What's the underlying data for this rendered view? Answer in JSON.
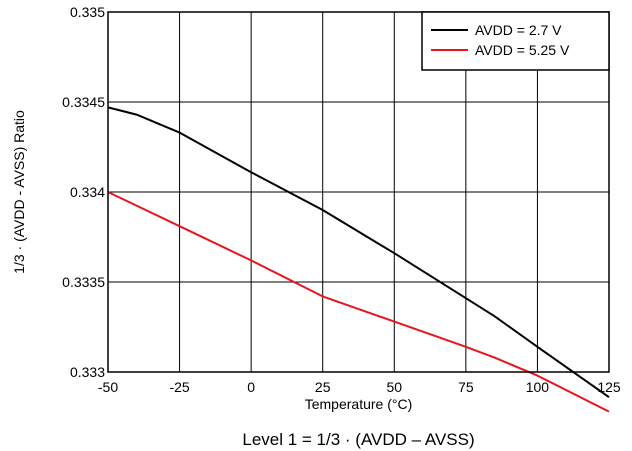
{
  "chart_data": {
    "type": "line",
    "title": "",
    "caption": "Level 1 = 1/3 · (AVDD – AVSS)",
    "xlabel": "Temperature (°C)",
    "ylabel": "1/3 · (AVDD - AVSS) Ratio",
    "xlim": [
      -50,
      125
    ],
    "ylim": [
      0.333,
      0.335
    ],
    "xticks": [
      -50,
      -25,
      0,
      25,
      50,
      75,
      100,
      125
    ],
    "xtick_labels": [
      "-50",
      "-25",
      "0",
      "25",
      "50",
      "75",
      "100",
      "125"
    ],
    "yticks": [
      0.333,
      0.3335,
      0.334,
      0.3345,
      0.335
    ],
    "ytick_labels": [
      "0.333",
      "0.3335",
      "0.334",
      "0.3345",
      "0.335"
    ],
    "grid": true,
    "legend_position": "top-right",
    "series": [
      {
        "name": "AVDD = 2.7 V",
        "color": "#000000",
        "x": [
          -50,
          -40,
          -25,
          0,
          25,
          50,
          75,
          85,
          100,
          125
        ],
        "y": [
          0.33447,
          0.33443,
          0.33433,
          0.33411,
          0.3339,
          0.33366,
          0.33341,
          0.33331,
          0.33314,
          0.33286
        ]
      },
      {
        "name": "AVDD = 5.25 V",
        "color": "#e8141e",
        "x": [
          -50,
          -25,
          0,
          25,
          50,
          75,
          85,
          100,
          125
        ],
        "y": [
          0.334,
          0.33381,
          0.33362,
          0.33342,
          0.33328,
          0.33314,
          0.33308,
          0.33298,
          0.33278
        ]
      }
    ]
  }
}
